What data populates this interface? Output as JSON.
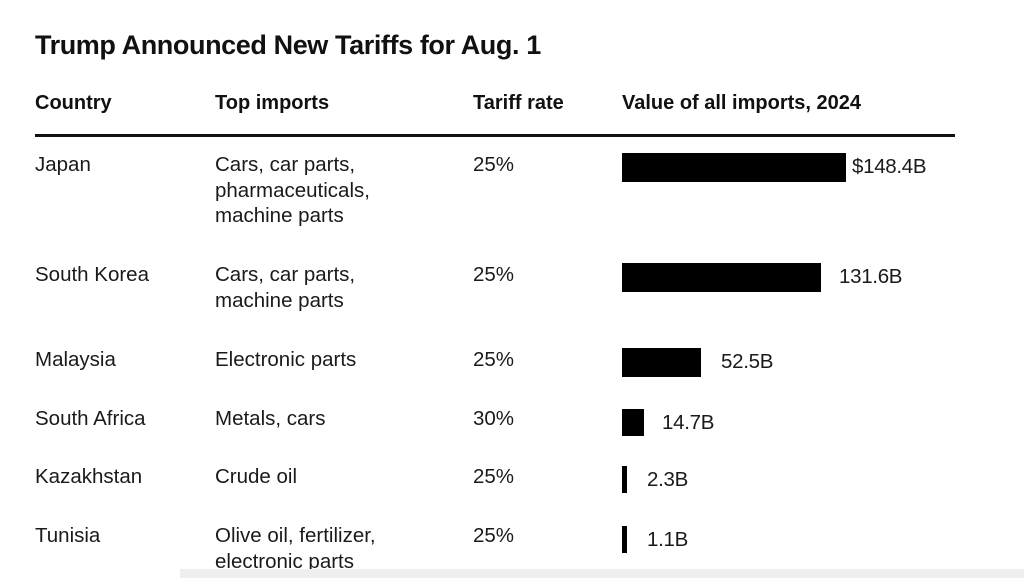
{
  "chart_data": {
    "type": "table",
    "title": "Trump Announced New Tariffs for Aug. 1",
    "columns": [
      "Country",
      "Top imports",
      "Tariff rate",
      "Value of all imports, 2024"
    ],
    "rows": [
      {
        "country": "Japan",
        "imports": "Cars, car parts,\npharmaceuticals,\nmachine parts",
        "rate": "25%",
        "value": 148.4,
        "value_label": "$148.4B"
      },
      {
        "country": "South Korea",
        "imports": "Cars, car parts,\nmachine parts",
        "rate": "25%",
        "value": 131.6,
        "value_label": "131.6B"
      },
      {
        "country": "Malaysia",
        "imports": "Electronic parts",
        "rate": "25%",
        "value": 52.5,
        "value_label": "52.5B"
      },
      {
        "country": "South Africa",
        "imports": "Metals, cars",
        "rate": "30%",
        "value": 14.7,
        "value_label": "14.7B"
      },
      {
        "country": "Kazakhstan",
        "imports": "Crude oil",
        "rate": "25%",
        "value": 2.3,
        "value_label": "2.3B"
      },
      {
        "country": "Tunisia",
        "imports": "Olive oil, fertilizer,\nelectronic parts",
        "rate": "25%",
        "value": 1.1,
        "value_label": "1.1B"
      }
    ],
    "value_unit": "B"
  },
  "colors": {
    "bar": "#000000",
    "text": "#1a1a1a",
    "background": "#ffffff"
  }
}
